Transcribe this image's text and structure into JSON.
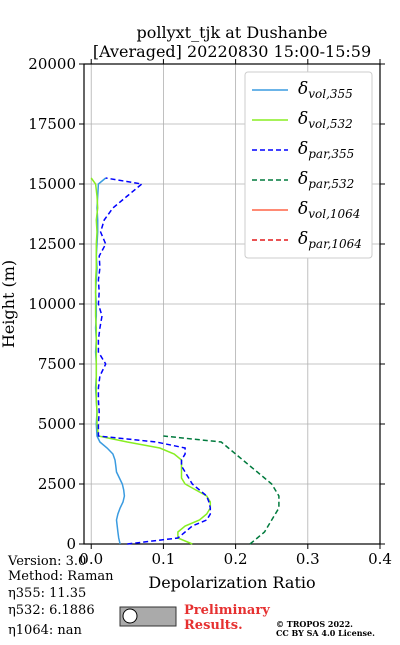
{
  "chart_data": {
    "type": "line",
    "orientation": "vertical-profile",
    "title": "pollyxt_tjk at Dushanbe",
    "subtitle": "[Averaged] 20220830 15:00-15:59",
    "xlabel": "Depolarization Ratio",
    "ylabel": "Height (m)",
    "xlim": [
      -0.01,
      0.4
    ],
    "xticks": [
      {
        "value": 0,
        "label": "0.0"
      },
      0.1,
      0.2,
      0.3,
      0.4
    ],
    "ylim": [
      0,
      20000
    ],
    "yticks": [
      0,
      2500,
      5000,
      7500,
      10000,
      12500,
      15000,
      17500,
      20000
    ],
    "grid": true,
    "legend": "upper right",
    "y": [
      0,
      250,
      500,
      750,
      1000,
      1250,
      1500,
      1750,
      2000,
      2250,
      2500,
      2750,
      3000,
      3250,
      3500,
      3750,
      4000,
      4250,
      4500,
      5000,
      5500,
      6000,
      6500,
      7000,
      7500,
      8000,
      8500,
      9000,
      9500,
      10000,
      10500,
      11000,
      11500,
      12000,
      12500,
      13000,
      13500,
      14000,
      14500,
      15000,
      15250
    ],
    "series": [
      {
        "name": "δvol,355",
        "color": "#3a9be0",
        "linestyle": "solid",
        "values": [
          0.04,
          0.038,
          0.037,
          0.036,
          0.035,
          0.037,
          0.04,
          0.044,
          0.046,
          0.045,
          0.043,
          0.039,
          0.035,
          0.034,
          0.033,
          0.03,
          0.022,
          0.012,
          0.008,
          0.007,
          0.008,
          0.007,
          0.006,
          0.007,
          0.007,
          0.006,
          0.007,
          0.006,
          0.007,
          0.007,
          0.006,
          0.007,
          0.008,
          0.007,
          0.008,
          0.009,
          0.009,
          0.008,
          0.009,
          0.01,
          0.02
        ]
      },
      {
        "name": "δvol,532",
        "color": "#88ee22",
        "linestyle": "solid",
        "values": [
          0.14,
          0.12,
          0.12,
          0.13,
          0.15,
          0.16,
          0.165,
          0.165,
          0.16,
          0.145,
          0.13,
          0.125,
          0.125,
          0.125,
          0.125,
          0.115,
          0.095,
          0.05,
          0.01,
          0.008,
          0.008,
          0.007,
          0.007,
          0.007,
          0.007,
          0.007,
          0.007,
          0.007,
          0.006,
          0.006,
          0.006,
          0.006,
          0.007,
          0.007,
          0.007,
          0.008,
          0.007,
          0.009,
          0.008,
          0.006,
          0.0
        ]
      },
      {
        "name": "δpar,355",
        "color": "#0000ff",
        "linestyle": "dashed",
        "values": [
          0.05,
          0.12,
          0.13,
          0.14,
          0.16,
          0.165,
          0.165,
          0.163,
          0.16,
          0.15,
          0.14,
          0.135,
          0.13,
          0.125,
          0.125,
          0.13,
          0.13,
          0.09,
          0.01,
          0.01,
          0.011,
          0.01,
          0.01,
          0.012,
          0.02,
          0.01,
          0.01,
          0.012,
          0.015,
          0.01,
          0.011,
          0.01,
          0.012,
          0.011,
          0.02,
          0.013,
          0.018,
          0.03,
          0.05,
          0.07,
          0.02
        ]
      },
      {
        "name": "δpar,532",
        "color": "#007a3d",
        "linestyle": "dashed",
        "values": [
          0.22,
          0.23,
          0.24,
          0.245,
          0.25,
          0.255,
          0.26,
          0.26,
          0.26,
          0.255,
          0.25,
          0.24,
          0.23,
          0.22,
          0.21,
          0.2,
          0.19,
          0.18,
          0.1,
          null,
          null,
          null,
          null,
          null,
          null,
          null,
          null,
          null,
          null,
          null,
          null,
          null,
          null,
          null,
          null,
          null,
          null,
          null,
          null,
          null,
          null
        ]
      },
      {
        "name": "δvol,1064",
        "color": "#ff6347",
        "linestyle": "solid",
        "values": [
          null,
          null,
          null,
          null,
          null,
          null,
          null,
          null,
          null,
          null,
          null,
          null,
          null,
          null,
          null,
          null,
          null,
          null,
          null,
          null,
          null,
          null,
          null,
          null,
          null,
          null,
          null,
          null,
          null,
          null,
          null,
          null,
          null,
          null,
          null,
          null,
          null,
          null,
          null,
          null,
          null
        ]
      },
      {
        "name": "δpar,1064",
        "color": "#e31a1c",
        "linestyle": "dashed",
        "values": [
          null,
          null,
          null,
          null,
          null,
          null,
          null,
          null,
          null,
          null,
          null,
          null,
          null,
          null,
          null,
          null,
          null,
          null,
          null,
          null,
          null,
          null,
          null,
          null,
          null,
          null,
          null,
          null,
          null,
          null,
          null,
          null,
          null,
          null,
          null,
          null,
          null,
          null,
          null,
          null,
          null
        ]
      }
    ]
  },
  "footer": {
    "version": "Version: 3.0",
    "method": "Method: Raman",
    "eta355": "η355:  11.35",
    "eta532": "η532: 6.1886",
    "eta1064": "η1064:    nan",
    "preliminary": "Preliminary",
    "results": "Results.",
    "copyright": "© TROPOS 2022.",
    "license": "CC BY SA 4.0 License."
  }
}
